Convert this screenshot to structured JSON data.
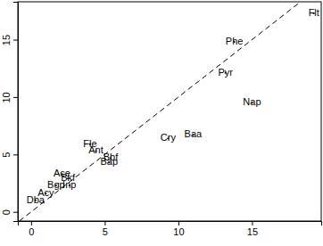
{
  "chart_data": {
    "type": "scatter",
    "labels": [
      "Flt",
      "Phe",
      "Pyr",
      "Nap",
      "Baa",
      "Cry",
      "Fle",
      "Ant",
      "Bbf",
      "Bap",
      "Ace",
      "Bkf",
      "Bgp",
      "Inp",
      "Acy",
      "Dba"
    ],
    "x": [
      19.2,
      13.8,
      13.2,
      15.0,
      11.0,
      9.3,
      4.0,
      4.4,
      5.4,
      5.3,
      2.1,
      2.5,
      1.7,
      2.6,
      1.0,
      0.3
    ],
    "y": [
      17.3,
      14.8,
      12.1,
      9.5,
      6.7,
      6.4,
      5.9,
      5.3,
      4.7,
      4.3,
      3.3,
      2.9,
      2.3,
      2.3,
      1.6,
      1.0
    ],
    "xlim": [
      -0.9,
      19.7
    ],
    "ylim": [
      -0.8,
      18.3
    ],
    "xticks": [
      0,
      5,
      10,
      15
    ],
    "yticks": [
      0,
      5,
      10,
      15
    ]
  }
}
